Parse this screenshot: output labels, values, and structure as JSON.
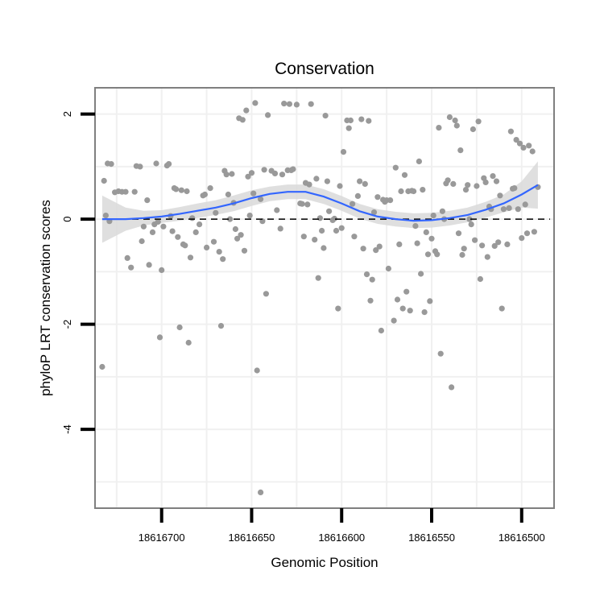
{
  "chart_data": {
    "type": "scatter",
    "title": "Conservation",
    "xlabel": "Genomic Position",
    "ylabel": "phyloP LRT conservation scores",
    "x_reversed": true,
    "xlim": [
      18616737,
      18616482
    ],
    "ylim": [
      -5.5,
      2.5
    ],
    "x_ticks": [
      18616700,
      18616650,
      18616600,
      18616550,
      18616500
    ],
    "x_tick_labels": [
      "18616700",
      "18616650",
      "18616600",
      "18616550",
      "18616500"
    ],
    "y_ticks": [
      -4,
      -2,
      0,
      2
    ],
    "y_tick_labels": [
      "-4",
      "-2",
      "0",
      "2"
    ],
    "grid": true,
    "reference_line": {
      "y": 0,
      "style": "dashed"
    },
    "colors": {
      "points": "#999999",
      "smooth": "#3366ff",
      "band": "#d9d9d9",
      "grid": "#f0f0f0",
      "panel_border": "#7f7f7f"
    },
    "points": [
      [
        18616733,
        -2.81
      ],
      [
        18616732,
        0.73
      ],
      [
        18616731,
        0.07
      ],
      [
        18616730,
        1.06
      ],
      [
        18616729,
        -0.04
      ],
      [
        18616728,
        1.05
      ],
      [
        18616726,
        0.51
      ],
      [
        18616724,
        0.53
      ],
      [
        18616722,
        0.52
      ],
      [
        18616720,
        0.52
      ],
      [
        18616719,
        -0.74
      ],
      [
        18616717,
        -0.92
      ],
      [
        18616715,
        0.52
      ],
      [
        18616714,
        1.01
      ],
      [
        18616712,
        1.0
      ],
      [
        18616711,
        -0.42
      ],
      [
        18616710,
        -0.14
      ],
      [
        18616708,
        0.36
      ],
      [
        18616707,
        -0.87
      ],
      [
        18616705,
        -0.25
      ],
      [
        18616704,
        -0.1
      ],
      [
        18616703,
        1.06
      ],
      [
        18616702,
        -0.05
      ],
      [
        18616701,
        -2.25
      ],
      [
        18616700,
        -0.97
      ],
      [
        18616699,
        -0.14
      ],
      [
        18616697,
        1.02
      ],
      [
        18616696,
        1.05
      ],
      [
        18616695,
        0.06
      ],
      [
        18616694,
        -0.23
      ],
      [
        18616693,
        0.59
      ],
      [
        18616692,
        0.57
      ],
      [
        18616691,
        -0.34
      ],
      [
        18616690,
        -2.06
      ],
      [
        18616689,
        0.55
      ],
      [
        18616688,
        -0.48
      ],
      [
        18616687,
        -0.5
      ],
      [
        18616686,
        0.53
      ],
      [
        18616685,
        -2.35
      ],
      [
        18616684,
        -0.73
      ],
      [
        18616683,
        0.02
      ],
      [
        18616681,
        -0.25
      ],
      [
        18616679,
        -0.1
      ],
      [
        18616677,
        0.45
      ],
      [
        18616676,
        0.47
      ],
      [
        18616675,
        -0.54
      ],
      [
        18616673,
        0.59
      ],
      [
        18616671,
        -0.43
      ],
      [
        18616670,
        0.12
      ],
      [
        18616668,
        -0.62
      ],
      [
        18616667,
        -2.03
      ],
      [
        18616666,
        -0.76
      ],
      [
        18616665,
        0.92
      ],
      [
        18616664,
        0.85
      ],
      [
        18616663,
        0.47
      ],
      [
        18616662,
        0.0
      ],
      [
        18616661,
        0.86
      ],
      [
        18616660,
        0.31
      ],
      [
        18616659,
        -0.19
      ],
      [
        18616658,
        -0.37
      ],
      [
        18616657,
        1.92
      ],
      [
        18616656,
        -0.3
      ],
      [
        18616655,
        1.89
      ],
      [
        18616654,
        -0.6
      ],
      [
        18616653,
        2.07
      ],
      [
        18616652,
        0.81
      ],
      [
        18616651,
        0.07
      ],
      [
        18616650,
        0.88
      ],
      [
        18616649,
        0.49
      ],
      [
        18616648,
        2.21
      ],
      [
        18616647,
        -2.88
      ],
      [
        18616645,
        0.38
      ],
      [
        18616644,
        -0.04
      ],
      [
        18616643,
        0.94
      ],
      [
        18616642,
        -1.42
      ],
      [
        18616641,
        1.98
      ],
      [
        18616639,
        0.92
      ],
      [
        18616637,
        0.87
      ],
      [
        18616636,
        0.17
      ],
      [
        18616634,
        -0.18
      ],
      [
        18616633,
        0.85
      ],
      [
        18616632,
        2.2
      ],
      [
        18616630,
        0.93
      ],
      [
        18616629,
        2.19
      ],
      [
        18616628,
        0.93
      ],
      [
        18616627,
        0.95
      ],
      [
        18616625,
        2.18
      ],
      [
        18616623,
        0.3
      ],
      [
        18616622,
        0.29
      ],
      [
        18616621,
        -0.33
      ],
      [
        18616620,
        0.69
      ],
      [
        18616619,
        0.28
      ],
      [
        18616618,
        0.66
      ],
      [
        18616617,
        2.19
      ],
      [
        18616615,
        -0.39
      ],
      [
        18616614,
        0.77
      ],
      [
        18616613,
        -1.12
      ],
      [
        18616612,
        0.02
      ],
      [
        18616611,
        -0.22
      ],
      [
        18616610,
        -0.55
      ],
      [
        18616609,
        1.97
      ],
      [
        18616608,
        0.72
      ],
      [
        18616607,
        0.15
      ],
      [
        18616605,
        -0.02
      ],
      [
        18616604,
        0.01
      ],
      [
        18616603,
        -0.22
      ],
      [
        18616602,
        -1.7
      ],
      [
        18616601,
        0.63
      ],
      [
        18616600,
        -0.17
      ],
      [
        18616599,
        1.28
      ],
      [
        18616597,
        1.88
      ],
      [
        18616596,
        1.73
      ],
      [
        18616595,
        1.88
      ],
      [
        18616594,
        0.29
      ],
      [
        18616593,
        -0.33
      ],
      [
        18616591,
        0.44
      ],
      [
        18616590,
        0.72
      ],
      [
        18616589,
        1.9
      ],
      [
        18616588,
        -0.56
      ],
      [
        18616587,
        0.67
      ],
      [
        18616586,
        -1.05
      ],
      [
        18616585,
        1.87
      ],
      [
        18616584,
        -1.55
      ],
      [
        18616583,
        -1.15
      ],
      [
        18616582,
        0.13
      ],
      [
        18616581,
        -0.59
      ],
      [
        18616580,
        0.42
      ],
      [
        18616579,
        -0.52
      ],
      [
        18616578,
        -2.12
      ],
      [
        18616577,
        0.37
      ],
      [
        18616576,
        0.33
      ],
      [
        18616575,
        0.36
      ],
      [
        18616574,
        -0.94
      ],
      [
        18616573,
        0.36
      ],
      [
        18616571,
        -1.93
      ],
      [
        18616570,
        0.98
      ],
      [
        18616569,
        -1.53
      ],
      [
        18616568,
        -0.48
      ],
      [
        18616567,
        0.53
      ],
      [
        18616566,
        -1.7
      ],
      [
        18616565,
        0.84
      ],
      [
        18616564,
        -1.38
      ],
      [
        18616563,
        0.53
      ],
      [
        18616562,
        -1.74
      ],
      [
        18616561,
        0.54
      ],
      [
        18616560,
        0.53
      ],
      [
        18616559,
        -0.13
      ],
      [
        18616558,
        -0.46
      ],
      [
        18616557,
        1.1
      ],
      [
        18616556,
        -1.04
      ],
      [
        18616555,
        0.56
      ],
      [
        18616554,
        -1.77
      ],
      [
        18616553,
        -0.25
      ],
      [
        18616552,
        -0.67
      ],
      [
        18616551,
        -1.56
      ],
      [
        18616550,
        -0.37
      ],
      [
        18616549,
        0.07
      ],
      [
        18616548,
        -0.61
      ],
      [
        18616547,
        -0.67
      ],
      [
        18616546,
        1.74
      ],
      [
        18616545,
        -2.56
      ],
      [
        18616544,
        0.15
      ],
      [
        18616543,
        0.0
      ],
      [
        18616542,
        0.68
      ],
      [
        18616541,
        0.74
      ],
      [
        18616540,
        1.94
      ],
      [
        18616539,
        -3.2
      ],
      [
        18616538,
        0.67
      ],
      [
        18616537,
        1.88
      ],
      [
        18616536,
        1.78
      ],
      [
        18616535,
        -0.27
      ],
      [
        18616534,
        1.31
      ],
      [
        18616533,
        -0.68
      ],
      [
        18616532,
        -0.56
      ],
      [
        18616531,
        0.56
      ],
      [
        18616530,
        0.65
      ],
      [
        18616529,
        0.0
      ],
      [
        18616528,
        -0.1
      ],
      [
        18616527,
        1.71
      ],
      [
        18616526,
        -0.4
      ],
      [
        18616525,
        0.63
      ],
      [
        18616524,
        1.86
      ],
      [
        18616523,
        -1.14
      ],
      [
        18616522,
        -0.5
      ],
      [
        18616521,
        0.78
      ],
      [
        18616520,
        0.7
      ],
      [
        18616519,
        -0.72
      ],
      [
        18616518,
        0.24
      ],
      [
        18616517,
        0.19
      ],
      [
        18616516,
        0.82
      ],
      [
        18616515,
        -0.51
      ],
      [
        18616514,
        0.72
      ],
      [
        18616513,
        -0.44
      ],
      [
        18616512,
        0.45
      ],
      [
        18616511,
        -1.7
      ],
      [
        18616510,
        0.19
      ],
      [
        18616508,
        -0.48
      ],
      [
        18616507,
        0.21
      ],
      [
        18616506,
        1.67
      ],
      [
        18616505,
        0.58
      ],
      [
        18616504,
        0.59
      ],
      [
        18616503,
        1.51
      ],
      [
        18616502,
        0.19
      ],
      [
        18616501,
        1.44
      ],
      [
        18616500,
        -0.36
      ],
      [
        18616499,
        1.36
      ],
      [
        18616498,
        0.28
      ],
      [
        18616497,
        -0.27
      ],
      [
        18616496,
        1.4
      ],
      [
        18616494,
        1.29
      ],
      [
        18616493,
        -0.24
      ],
      [
        18616491,
        0.61
      ],
      [
        18616645,
        -5.2
      ]
    ],
    "smooth": {
      "x": [
        18616733,
        18616720,
        18616710,
        18616700,
        18616690,
        18616680,
        18616670,
        18616660,
        18616650,
        18616640,
        18616630,
        18616620,
        18616610,
        18616600,
        18616590,
        18616580,
        18616570,
        18616560,
        18616550,
        18616540,
        18616530,
        18616520,
        18616510,
        18616500,
        18616491
      ],
      "y": [
        0.0,
        0.0,
        0.02,
        0.05,
        0.1,
        0.16,
        0.22,
        0.3,
        0.4,
        0.48,
        0.52,
        0.52,
        0.43,
        0.3,
        0.15,
        0.05,
        0.0,
        -0.03,
        -0.02,
        0.02,
        0.08,
        0.18,
        0.3,
        0.47,
        0.65
      ],
      "lower": [
        -0.45,
        -0.22,
        -0.12,
        -0.07,
        -0.03,
        0.02,
        0.08,
        0.15,
        0.25,
        0.34,
        0.38,
        0.38,
        0.29,
        0.16,
        0.01,
        -0.09,
        -0.14,
        -0.17,
        -0.16,
        -0.12,
        -0.06,
        0.03,
        0.13,
        0.22,
        0.2
      ],
      "upper": [
        0.45,
        0.22,
        0.16,
        0.17,
        0.23,
        0.3,
        0.36,
        0.45,
        0.55,
        0.62,
        0.66,
        0.66,
        0.57,
        0.44,
        0.29,
        0.19,
        0.14,
        0.11,
        0.12,
        0.16,
        0.22,
        0.33,
        0.47,
        0.72,
        1.1
      ]
    }
  }
}
